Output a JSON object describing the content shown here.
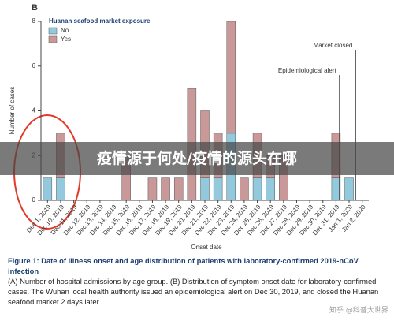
{
  "chart_data": {
    "type": "stacked-bar",
    "panel_label": "B",
    "legend_title": "Huanan seafood market exposure",
    "y_label": "Number of cases",
    "x_label": "Onset date",
    "categories": [
      "Dec 1, 2019",
      "Dec 10, 2019",
      "Dec 11, 2019",
      "Dec 12, 2019",
      "Dec 13, 2019",
      "Dec 14, 2019",
      "Dec 15, 2019",
      "Dec 16, 2019",
      "Dec 17, 2019",
      "Dec 18, 2019",
      "Dec 19, 2019",
      "Dec 20, 2019",
      "Dec 21, 2019",
      "Dec 22, 2019",
      "Dec 23, 2019",
      "Dec 24, 2019",
      "Dec 25, 2019",
      "Dec 26, 2019",
      "Dec 27, 2019",
      "Dec 28, 2019",
      "Dec 29, 2019",
      "Dec 30, 2019",
      "Dec 31, 2019",
      "Jan 1, 2020",
      "Jan 2, 2020"
    ],
    "series": [
      {
        "name": "No",
        "color": "#92c9dd",
        "values": [
          1,
          1,
          0,
          0,
          0,
          0,
          0,
          0,
          0,
          0,
          0,
          0,
          1,
          1,
          3,
          0,
          1,
          1,
          0,
          0,
          0,
          0,
          1,
          1,
          0
        ]
      },
      {
        "name": "Yes",
        "color": "#c9999a",
        "values": [
          0,
          2,
          0,
          0,
          0,
          0,
          2,
          0,
          1,
          1,
          1,
          5,
          3,
          2,
          5,
          1,
          2,
          1,
          2,
          0,
          0,
          0,
          2,
          0,
          0
        ]
      }
    ],
    "ylim": [
      0,
      8
    ],
    "yticks": [
      0,
      2,
      4,
      6,
      8
    ],
    "annotations": [
      "Market closed",
      "Epidemiological alert"
    ]
  },
  "overlay": "疫情源于何处/疫情的源头在哪",
  "watermark": "知乎 @科普大世界",
  "caption": {
    "title": "Figure 1: Date of illness onset and age distribution of patients with laboratory-confirmed 2019-nCoV infection",
    "text": "(A) Number of hospital admissions by age group. (B) Distribution of symptom onset date for laboratory-confirmed cases. The Wuhan local health authority issued an epidemiological alert on Dec 30, 2019, and closed the Huanan seafood market 2 days later."
  }
}
